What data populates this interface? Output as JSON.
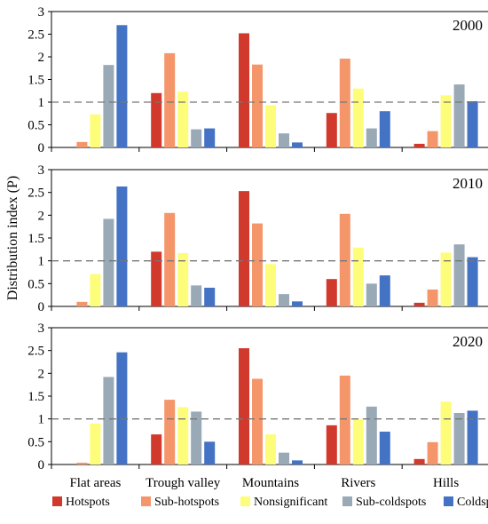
{
  "chart_data": {
    "type": "bar",
    "ylabel": "Distribution index (P)",
    "categories": [
      "Flat areas",
      "Trough valley",
      "Mountains",
      "Rivers",
      "Hills"
    ],
    "ylim": [
      0,
      3
    ],
    "yticks": [
      "0",
      "0.5",
      "1",
      "1.5",
      "2",
      "2.5",
      "3"
    ],
    "reference_line": 1,
    "legend_position": "bottom",
    "colors": {
      "Hotspots": "#d0392b",
      "Sub-hotspots": "#f4956a",
      "Nonsignificant": "#fdfd7a",
      "Sub-coldspots": "#99a9b6",
      "Coldspots": "#4472c4"
    },
    "series_names": [
      "Hotspots",
      "Sub-hotspots",
      "Nonsignificant",
      "Sub-coldspots",
      "Coldspots"
    ],
    "panels": [
      {
        "title": "2000",
        "series": [
          {
            "name": "Hotspots",
            "values": [
              0,
              1.2,
              2.52,
              0.76,
              0.08
            ]
          },
          {
            "name": "Sub-hotspots",
            "values": [
              0.12,
              2.08,
              1.83,
              1.96,
              0.36
            ]
          },
          {
            "name": "Nonsignificant",
            "values": [
              0.73,
              1.23,
              0.93,
              1.3,
              1.15
            ]
          },
          {
            "name": "Sub-coldspots",
            "values": [
              1.82,
              0.4,
              0.31,
              0.42,
              1.39
            ]
          },
          {
            "name": "Coldspots",
            "values": [
              2.7,
              0.42,
              0.11,
              0.8,
              1.02
            ]
          }
        ]
      },
      {
        "title": "2010",
        "series": [
          {
            "name": "Hotspots",
            "values": [
              0,
              1.2,
              2.53,
              0.6,
              0.08
            ]
          },
          {
            "name": "Sub-hotspots",
            "values": [
              0.1,
              2.05,
              1.82,
              2.03,
              0.37
            ]
          },
          {
            "name": "Nonsignificant",
            "values": [
              0.71,
              1.17,
              0.93,
              1.29,
              1.18
            ]
          },
          {
            "name": "Sub-coldspots",
            "values": [
              1.92,
              0.46,
              0.27,
              0.5,
              1.36
            ]
          },
          {
            "name": "Coldspots",
            "values": [
              2.63,
              0.41,
              0.11,
              0.68,
              1.08
            ]
          }
        ]
      },
      {
        "title": "2020",
        "series": [
          {
            "name": "Hotspots",
            "values": [
              0,
              0.66,
              2.55,
              0.86,
              0.12
            ]
          },
          {
            "name": "Sub-hotspots",
            "values": [
              0.04,
              1.42,
              1.88,
              1.95,
              0.49
            ]
          },
          {
            "name": "Nonsignificant",
            "values": [
              0.9,
              1.26,
              0.66,
              1.0,
              1.38
            ]
          },
          {
            "name": "Sub-coldspots",
            "values": [
              1.92,
              1.16,
              0.26,
              1.27,
              1.13
            ]
          },
          {
            "name": "Coldspots",
            "values": [
              2.46,
              0.5,
              0.09,
              0.72,
              1.18
            ]
          }
        ]
      }
    ]
  }
}
